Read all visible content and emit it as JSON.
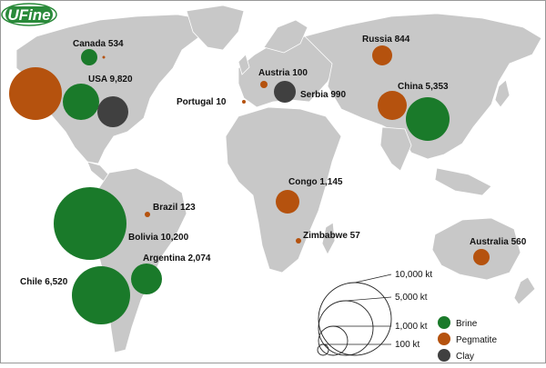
{
  "logo": {
    "text": "UFine",
    "color": "#2a8a3a"
  },
  "colors": {
    "land": "#c8c8c8",
    "land_stroke": "#ffffff",
    "ocean": "#ffffff",
    "brine": "#1a7a2a",
    "pegmatite": "#b5520e",
    "clay": "#404040"
  },
  "units": "kt",
  "deposits": [
    {
      "label": "Canada 534",
      "country": "Canada",
      "value": 534,
      "type": "brine"
    },
    {
      "label": "USA 9,820",
      "country": "USA",
      "value": 9820,
      "type": "brine"
    },
    {
      "label": "Portugal 10",
      "country": "Portugal",
      "value": 10,
      "type": "pegmatite"
    },
    {
      "label": "Austria 100",
      "country": "Austria",
      "value": 100,
      "type": "pegmatite"
    },
    {
      "label": "Serbia 990",
      "country": "Serbia",
      "value": 990,
      "type": "clay"
    },
    {
      "label": "Russia 844",
      "country": "Russia",
      "value": 844,
      "type": "pegmatite"
    },
    {
      "label": "China 5,353",
      "country": "China",
      "value": 5353,
      "type": "brine"
    },
    {
      "label": "Congo 1,145",
      "country": "Congo",
      "value": 1145,
      "type": "pegmatite"
    },
    {
      "label": "Zimbabwe 57",
      "country": "Zimbabwe",
      "value": 57,
      "type": "pegmatite"
    },
    {
      "label": "Brazil 123",
      "country": "Brazil",
      "value": 123,
      "type": "pegmatite"
    },
    {
      "label": "Bolivia 10,200",
      "country": "Bolivia",
      "value": 10200,
      "type": "brine"
    },
    {
      "label": "Argentina 2,074",
      "country": "Argentina",
      "value": 2074,
      "type": "brine"
    },
    {
      "label": "Chile 6,520",
      "country": "Chile",
      "value": 6520,
      "type": "brine"
    },
    {
      "label": "Australia 560",
      "country": "Australia",
      "value": 560,
      "type": "pegmatite"
    }
  ],
  "size_legend": [
    {
      "label": "10,000 kt",
      "value": 10000
    },
    {
      "label": "5,000 kt",
      "value": 5000
    },
    {
      "label": "1,000 kt",
      "value": 1000
    },
    {
      "label": "100 kt",
      "value": 100
    }
  ],
  "type_legend": [
    {
      "key": "brine",
      "label": "Brine",
      "color": "#1a7a2a"
    },
    {
      "key": "pegmatite",
      "label": "Pegmatite",
      "color": "#b5520e"
    },
    {
      "key": "clay",
      "label": "Clay",
      "color": "#404040"
    }
  ]
}
